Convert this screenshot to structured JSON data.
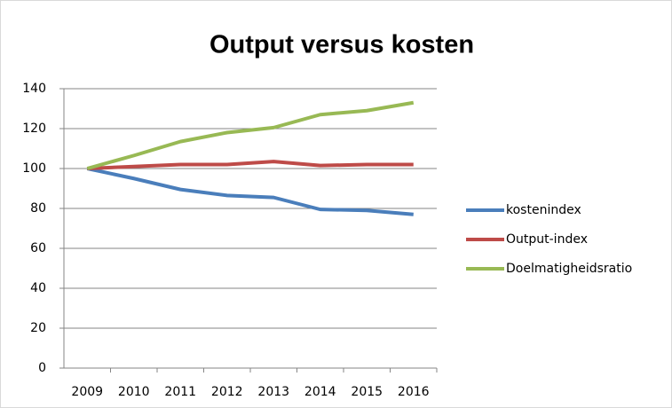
{
  "chart_data": {
    "type": "line",
    "title": "Output versus kosten",
    "categories": [
      "2009",
      "2010",
      "2011",
      "2012",
      "2013",
      "2014",
      "2015",
      "2016"
    ],
    "series": [
      {
        "name": "kostenindex",
        "color": "#4a7ebb",
        "values": [
          100,
          95,
          89.5,
          86.5,
          85.5,
          79.5,
          79,
          77
        ]
      },
      {
        "name": "Output-index",
        "color": "#be4b48",
        "values": [
          100,
          101,
          102,
          102,
          103.5,
          101.5,
          102,
          102
        ]
      },
      {
        "name": "Doelmatigheidsratio",
        "color": "#98b954",
        "values": [
          100,
          106.5,
          113.5,
          118,
          120.5,
          127,
          129,
          133
        ]
      }
    ],
    "ylim": [
      0,
      140
    ],
    "yticks": [
      0,
      20,
      40,
      60,
      80,
      100,
      120,
      140
    ],
    "grid": true,
    "legend": "right"
  }
}
